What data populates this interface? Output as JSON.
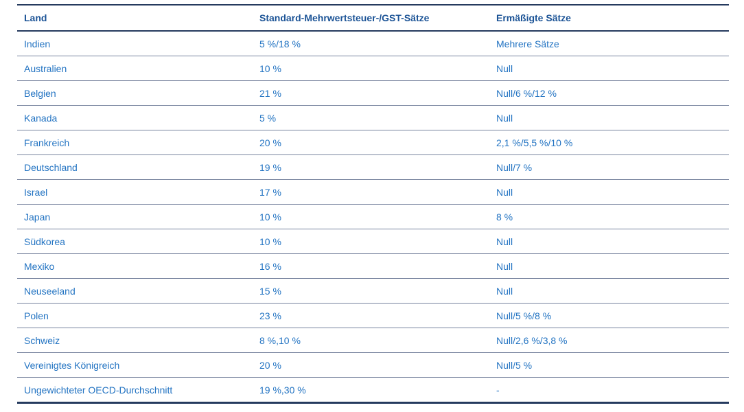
{
  "colors": {
    "background": "#ffffff",
    "header_text": "#1b5396",
    "body_text": "#2273c2",
    "strong_border": "#253a5e",
    "row_separator": "#76829d"
  },
  "table": {
    "columns": [
      {
        "key": "country",
        "label": "Land"
      },
      {
        "key": "standard_rate",
        "label": "Standard-Mehrwertsteuer-/GST-Sätze"
      },
      {
        "key": "reduced_rate",
        "label": "Ermäßigte Sätze"
      }
    ],
    "rows": [
      {
        "country": "Indien",
        "standard_rate": "5 %/18 %",
        "reduced_rate": "Mehrere Sätze"
      },
      {
        "country": "Australien",
        "standard_rate": "10 %",
        "reduced_rate": "Null"
      },
      {
        "country": "Belgien",
        "standard_rate": "21 %",
        "reduced_rate": "Null/6 %/12 %"
      },
      {
        "country": "Kanada",
        "standard_rate": "5 %",
        "reduced_rate": "Null"
      },
      {
        "country": "Frankreich",
        "standard_rate": "20 %",
        "reduced_rate": "2,1 %/5,5 %/10 %"
      },
      {
        "country": "Deutschland",
        "standard_rate": "19 %",
        "reduced_rate": "Null/7 %"
      },
      {
        "country": "Israel",
        "standard_rate": "17 %",
        "reduced_rate": "Null"
      },
      {
        "country": "Japan",
        "standard_rate": "10 %",
        "reduced_rate": "8 %"
      },
      {
        "country": "Südkorea",
        "standard_rate": "10 %",
        "reduced_rate": "Null"
      },
      {
        "country": "Mexiko",
        "standard_rate": "16 %",
        "reduced_rate": "Null"
      },
      {
        "country": "Neuseeland",
        "standard_rate": "15 %",
        "reduced_rate": "Null"
      },
      {
        "country": "Polen",
        "standard_rate": "23 %",
        "reduced_rate": "Null/5 %/8 %"
      },
      {
        "country": "Schweiz",
        "standard_rate": "8 %,10 %",
        "reduced_rate": "Null/2,6 %/3,8 %"
      },
      {
        "country": "Vereinigtes Königreich",
        "standard_rate": "20 %",
        "reduced_rate": "Null/5 %"
      },
      {
        "country": "Ungewichteter OECD-Durchschnitt",
        "standard_rate": "19 %,30 %",
        "reduced_rate": "-"
      }
    ]
  }
}
